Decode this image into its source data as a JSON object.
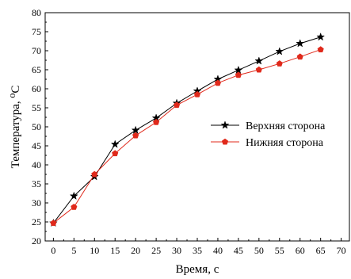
{
  "chart_data": {
    "type": "line",
    "xlabel": "Время, с",
    "ylabel": "Температура, ⁰С",
    "xlim": [
      -2,
      72
    ],
    "ylim": [
      20,
      80
    ],
    "xticks": [
      0,
      5,
      10,
      15,
      20,
      25,
      30,
      35,
      40,
      45,
      50,
      55,
      60,
      65,
      70
    ],
    "yticks": [
      20,
      25,
      30,
      35,
      40,
      45,
      50,
      55,
      60,
      65,
      70,
      75,
      80
    ],
    "legend_position": "right-center",
    "grid": false,
    "x": [
      0,
      5,
      10,
      15,
      20,
      25,
      30,
      35,
      40,
      45,
      50,
      55,
      60,
      65
    ],
    "series": [
      {
        "name": "Верхняя сторона",
        "color": "#000000",
        "marker": "star",
        "values": [
          24.7,
          31.8,
          36.9,
          45.4,
          49.1,
          52.3,
          56.2,
          59.4,
          62.5,
          64.9,
          67.3,
          69.8,
          71.9,
          73.6
        ]
      },
      {
        "name": "Нижняя сторона",
        "color": "#e0291b",
        "marker": "pentagon",
        "values": [
          24.7,
          28.9,
          37.5,
          43.0,
          47.7,
          51.2,
          55.7,
          58.5,
          61.5,
          63.6,
          65.0,
          66.6,
          68.4,
          70.3
        ]
      }
    ]
  }
}
